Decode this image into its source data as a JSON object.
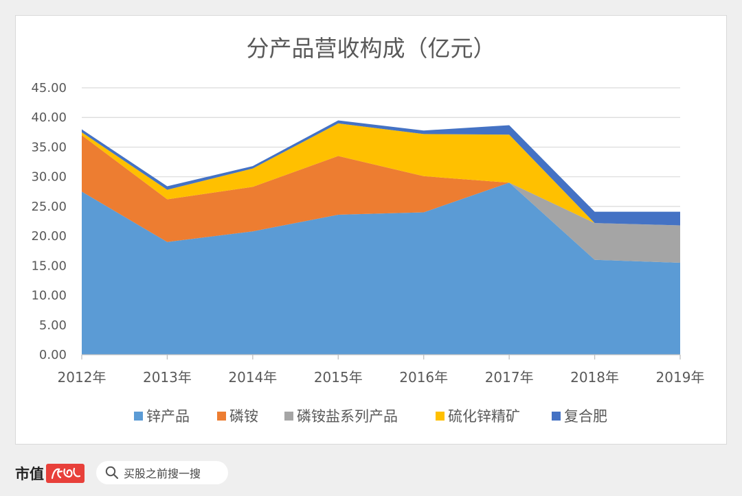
{
  "chart_data": {
    "type": "area",
    "stacked": true,
    "title": "分产品营收构成（亿元）",
    "categories": [
      "2012年",
      "2013年",
      "2014年",
      "2015年",
      "2016年",
      "2017年",
      "2018年",
      "2019年"
    ],
    "ylim": [
      0,
      45
    ],
    "yticks": [
      "0.00",
      "5.00",
      "10.00",
      "15.00",
      "20.00",
      "25.00",
      "30.00",
      "35.00",
      "40.00",
      "45.00"
    ],
    "grid": true,
    "legend_position": "bottom",
    "series": [
      {
        "name": "锌产品",
        "color": "#5b9bd5",
        "values": [
          27.5,
          19.0,
          20.8,
          23.6,
          24.0,
          29.0,
          16.0,
          15.5
        ]
      },
      {
        "name": "磷铵",
        "color": "#ed7d31",
        "values": [
          9.5,
          7.2,
          7.5,
          9.9,
          6.1,
          0.0,
          0.0,
          0.0
        ]
      },
      {
        "name": "磷铵盐系列产品",
        "color": "#a5a5a5",
        "values": [
          0.0,
          0.0,
          0.0,
          0.0,
          0.0,
          0.0,
          6.2,
          6.3
        ]
      },
      {
        "name": "硫化锌精矿",
        "color": "#ffc000",
        "values": [
          0.5,
          1.6,
          3.1,
          5.5,
          7.1,
          8.1,
          0.0,
          0.0
        ]
      },
      {
        "name": "复合肥",
        "color": "#4472c4",
        "values": [
          0.5,
          0.6,
          0.4,
          0.5,
          0.6,
          1.6,
          1.9,
          2.3
        ]
      }
    ]
  },
  "footer": {
    "brand": "市值",
    "brand_logo_text": "风云",
    "search_icon": "search-icon",
    "search_text": "买股之前搜一搜"
  }
}
